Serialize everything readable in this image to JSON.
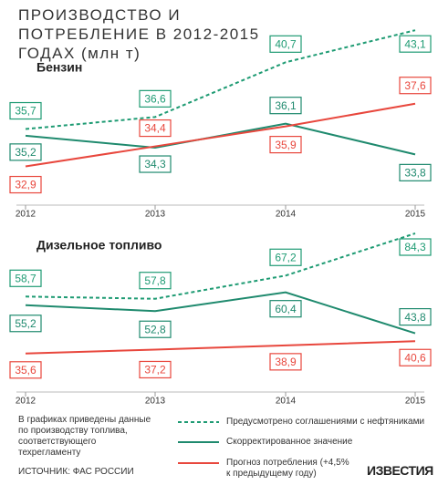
{
  "title": "ПРОИЗВОДСТВО И ПОТРЕБЛЕНИЕ В 2012-2015 ГОДАХ (млн т)",
  "chart_data": [
    {
      "type": "line",
      "title": "Бензин",
      "categories": [
        "2012",
        "2013",
        "2014",
        "2015"
      ],
      "ylim": [
        30,
        44
      ],
      "series": [
        {
          "name": "Предусмотрено соглашениями с нефтяниками",
          "color": "#1e9b73",
          "style": "dashed",
          "values": [
            35.7,
            36.6,
            40.7,
            43.1
          ],
          "value_labels": [
            "35,7",
            "36,6",
            "40,7",
            "43,1"
          ]
        },
        {
          "name": "Скорректированное значение",
          "color": "#1f8a6e",
          "style": "solid",
          "values": [
            35.2,
            34.3,
            36.1,
            33.8
          ],
          "value_labels": [
            "35,2",
            "34,3",
            "36,1",
            "33,8"
          ]
        },
        {
          "name": "Прогноз потребления (+4,5% к предыдущему году)",
          "color": "#e8473d",
          "style": "solid",
          "values": [
            32.9,
            34.4,
            35.9,
            37.6
          ],
          "value_labels": [
            "32,9",
            "34,4",
            "35,9",
            "37,6"
          ]
        }
      ]
    },
    {
      "type": "line",
      "title": "Дизельное топливо",
      "categories": [
        "2012",
        "2013",
        "2014",
        "2015"
      ],
      "ylim": [
        20,
        88
      ],
      "series": [
        {
          "color": "#1e9b73",
          "style": "dashed",
          "values": [
            58.7,
            57.8,
            67.2,
            84.3
          ],
          "value_labels": [
            "58,7",
            "57,8",
            "67,2",
            "84,3"
          ]
        },
        {
          "color": "#1f8a6e",
          "style": "solid",
          "values": [
            55.2,
            52.8,
            60.4,
            43.8
          ],
          "value_labels": [
            "55,2",
            "52,8",
            "60,4",
            "43,8"
          ]
        },
        {
          "color": "#e8473d",
          "style": "solid",
          "values": [
            35.6,
            37.2,
            38.9,
            40.6
          ],
          "value_labels": [
            "35,6",
            "37,2",
            "38,9",
            "40,6"
          ]
        }
      ]
    }
  ],
  "note": "В графиках приведены данные по производству топлива, соответствующего техрегламенту",
  "source": "ИСТОЧНИК: ФАС РОССИИ",
  "logo": "ИЗВЕСТИЯ"
}
